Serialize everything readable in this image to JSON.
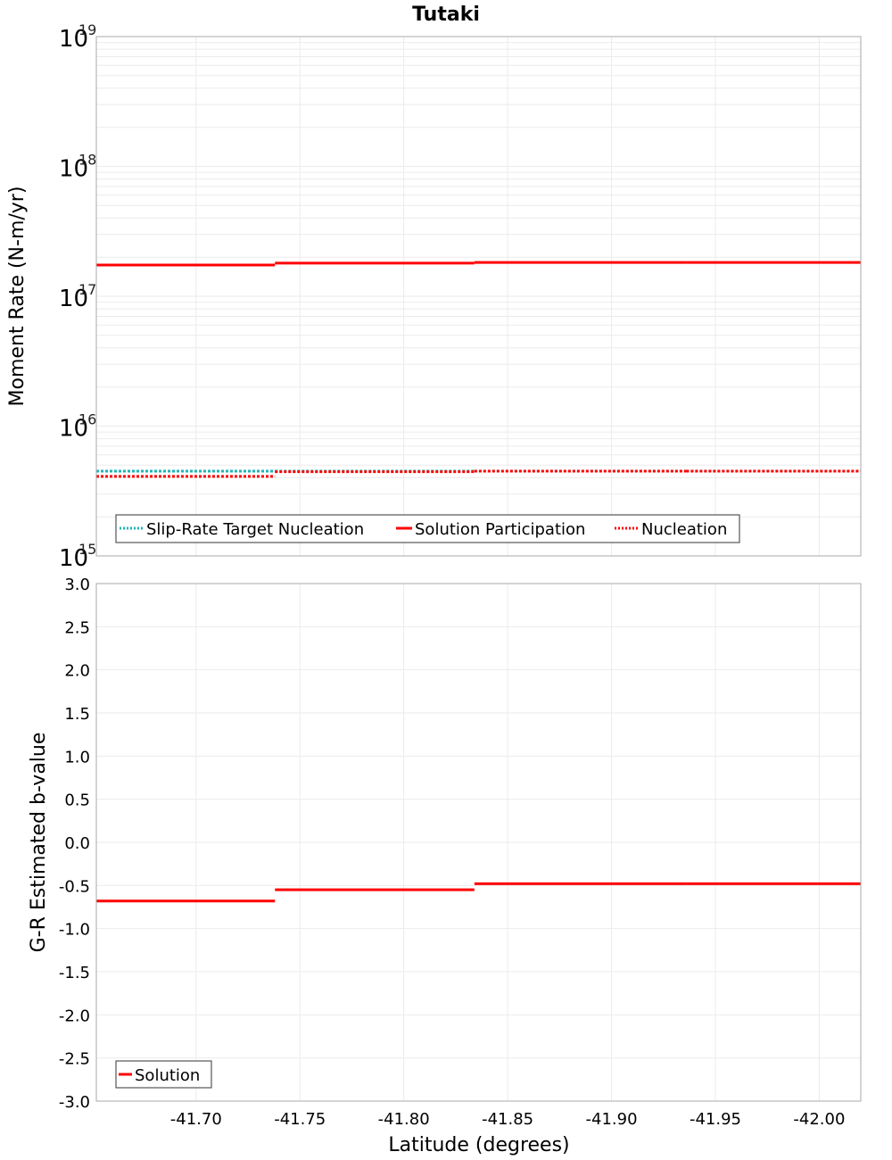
{
  "title": "Tutaki",
  "colors": {
    "slip_rate_target": "#1fb5b5",
    "solution": "#ff0000",
    "nucleation": "#ff0000",
    "grid": "#ebebeb",
    "frame": "#aaaaaa"
  },
  "chart_data": [
    {
      "type": "line",
      "panel": "top",
      "title": "Tutaki",
      "xlabel": "Latitude (degrees)",
      "ylabel": "Moment Rate (N-m/yr)",
      "yscale": "log",
      "ylim": [
        1000000000000000.0,
        1e+19
      ],
      "xlim": [
        -41.652,
        -42.02
      ],
      "grid": true,
      "legend_position": "lower-left",
      "y_tick_labels": [
        {
          "base": "10",
          "exp": "19",
          "value": 1e+19
        },
        {
          "base": "10",
          "exp": "18",
          "value": 1e+18
        },
        {
          "base": "10",
          "exp": "17",
          "value": 1e+17
        },
        {
          "base": "10",
          "exp": "16",
          "value": 1e+16
        },
        {
          "base": "10",
          "exp": "15",
          "value": 1000000000000000.0
        }
      ],
      "segment_edges": [
        -41.652,
        -41.738,
        -41.834,
        -41.936,
        -42.02
      ],
      "series": [
        {
          "name": "Slip-Rate Target Nucleation",
          "style": "dotted",
          "color": "#1fb5b5",
          "values": [
            4500000000000000.0,
            4500000000000000.0,
            4500000000000000.0,
            4500000000000000.0
          ]
        },
        {
          "name": "Solution Participation",
          "style": "solid",
          "color": "#ff0000",
          "values": [
            1.74e+17,
            1.8e+17,
            1.82e+17,
            1.82e+17
          ]
        },
        {
          "name": "Nucleation",
          "style": "dotted",
          "color": "#ff0000",
          "values": [
            4100000000000000.0,
            4450000000000000.0,
            4500000000000000.0,
            4500000000000000.0
          ]
        }
      ]
    },
    {
      "type": "line",
      "panel": "bottom",
      "xlabel": "Latitude (degrees)",
      "ylabel": "G-R Estimated b-value",
      "ylim": [
        -3.0,
        3.0
      ],
      "xlim": [
        -41.652,
        -42.02
      ],
      "grid": true,
      "legend_position": "lower-left",
      "y_tick_labels": [
        "3.0",
        "2.5",
        "2.0",
        "1.5",
        "1.0",
        "0.5",
        "0.0",
        "-0.5",
        "-1.0",
        "-1.5",
        "-2.0",
        "-2.5",
        "-3.0"
      ],
      "x_tick_labels": [
        "-41.70",
        "-41.75",
        "-41.80",
        "-41.85",
        "-41.90",
        "-41.95",
        "-42.00"
      ],
      "segment_edges": [
        -41.652,
        -41.738,
        -41.834,
        -41.936,
        -42.02
      ],
      "series": [
        {
          "name": "Solution",
          "style": "solid",
          "color": "#ff0000",
          "values": [
            -0.68,
            -0.55,
            -0.48,
            -0.48
          ]
        }
      ]
    }
  ],
  "top_legend": {
    "items": [
      {
        "label": "Slip-Rate Target Nucleation"
      },
      {
        "label": "Solution Participation"
      },
      {
        "label": "Nucleation"
      }
    ]
  },
  "bottom_legend": {
    "items": [
      {
        "label": "Solution"
      }
    ]
  },
  "x_axis": {
    "label": "Latitude (degrees)",
    "ticks": [
      "-41.70",
      "-41.75",
      "-41.80",
      "-41.85",
      "-41.90",
      "-41.95",
      "-42.00"
    ]
  },
  "top_y_axis": {
    "label": "Moment Rate (N-m/yr)"
  },
  "bottom_y_axis": {
    "label": "G-R Estimated b-value"
  }
}
